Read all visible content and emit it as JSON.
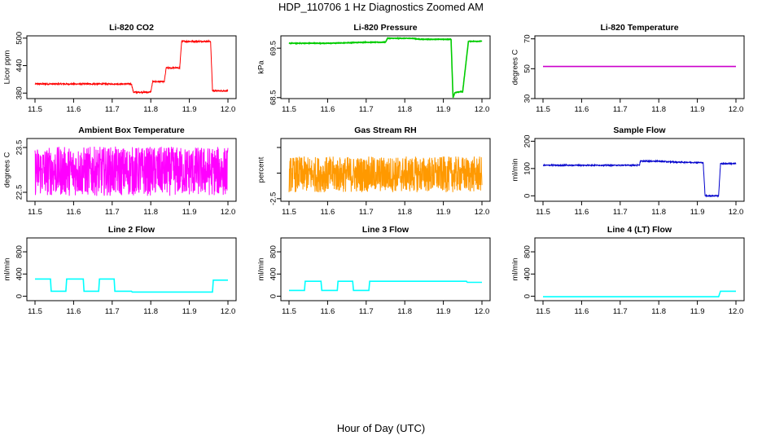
{
  "title": "HDP_110706  1 Hz Diagnostics Zoomed AM",
  "xlabel": "Hour of Day (UTC)",
  "chart_data": [
    {
      "type": "line",
      "title": "Li-820 CO2",
      "ylabel": "Licor ppm",
      "color": "#ff0000",
      "xlim": [
        11.5,
        12.0
      ],
      "ylim": [
        368,
        505
      ],
      "xticks": [
        "11.5",
        "11.6",
        "11.7",
        "11.8",
        "11.9",
        "12.0"
      ],
      "yticks": [
        {
          "v": 380,
          "l": "380"
        },
        {
          "v": 440,
          "l": "440"
        },
        {
          "v": 500,
          "l": "500"
        }
      ],
      "step": true,
      "noise": 1.5,
      "x": [
        11.5,
        11.75,
        11.755,
        11.8,
        11.805,
        11.835,
        11.84,
        11.875,
        11.88,
        11.955,
        11.96,
        12.0
      ],
      "y": [
        400,
        400,
        382,
        382,
        405,
        405,
        435,
        435,
        493,
        493,
        385,
        385
      ]
    },
    {
      "type": "line",
      "title": "Li-820 Pressure",
      "ylabel": "kPa",
      "color": "#00cc00",
      "xlim": [
        11.5,
        12.0
      ],
      "ylim": [
        68.48,
        69.75
      ],
      "xticks": [
        "11.5",
        "11.6",
        "11.7",
        "11.8",
        "11.9",
        "12.0"
      ],
      "yticks": [
        {
          "v": 68.5,
          "l": "68.5"
        },
        {
          "v": 69.5,
          "l": "69.5"
        }
      ],
      "step": true,
      "noise": 0.005,
      "x": [
        11.5,
        11.6,
        11.65,
        11.7,
        11.75,
        11.755,
        11.82,
        11.84,
        11.9,
        11.92,
        11.925,
        11.93,
        11.945,
        11.95,
        11.96,
        11.965,
        12.0
      ],
      "y": [
        69.6,
        69.6,
        69.61,
        69.62,
        69.62,
        69.7,
        69.7,
        69.68,
        69.68,
        69.68,
        68.5,
        68.6,
        68.62,
        68.62,
        69.3,
        69.64,
        69.64
      ]
    },
    {
      "type": "line",
      "title": "Li-820 Temperature",
      "ylabel": "degrees C",
      "color": "#cc00cc",
      "xlim": [
        11.5,
        12.0
      ],
      "ylim": [
        30,
        72
      ],
      "xticks": [
        "11.5",
        "11.6",
        "11.7",
        "11.8",
        "11.9",
        "12.0"
      ],
      "yticks": [
        {
          "v": 30,
          "l": "30"
        },
        {
          "v": 50,
          "l": "50"
        },
        {
          "v": 70,
          "l": "70"
        }
      ],
      "step": false,
      "noise": 0,
      "x": [
        11.5,
        12.0
      ],
      "y": [
        51.5,
        51.5
      ]
    },
    {
      "type": "line",
      "title": "Ambient Box Temperature",
      "ylabel": "degrees C",
      "color": "#ff00ff",
      "xlim": [
        11.5,
        12.0
      ],
      "ylim": [
        22.3,
        23.7
      ],
      "xticks": [
        "11.5",
        "11.6",
        "11.7",
        "11.8",
        "11.9",
        "12.0"
      ],
      "yticks": [
        {
          "v": 22.5,
          "l": "22.5"
        },
        {
          "v": 23.5,
          "l": "23.5"
        }
      ],
      "step": false,
      "noise": 0.55,
      "x": [
        11.5,
        12.0
      ],
      "y": [
        22.97,
        22.97
      ]
    },
    {
      "type": "line",
      "title": "Gas Stream RH",
      "ylabel": "percent",
      "color": "#ff9900",
      "xlim": [
        11.5,
        12.0
      ],
      "ylim": [
        -2.7,
        2.2
      ],
      "xticks": [
        "11.5",
        "11.6",
        "11.7",
        "11.8",
        "11.9",
        "12.0"
      ],
      "yticks": [
        {
          "v": -2.5,
          "l": "-2.5"
        },
        {
          "v": -0.5,
          "l": ""
        },
        {
          "v": 1.5,
          "l": ""
        }
      ],
      "step": false,
      "noise": 1.4,
      "x": [
        11.5,
        12.0
      ],
      "y": [
        -0.6,
        -0.6
      ]
    },
    {
      "type": "line",
      "title": "Sample Flow",
      "ylabel": "ml/min",
      "color": "#0000cc",
      "xlim": [
        11.5,
        12.0
      ],
      "ylim": [
        -20,
        210
      ],
      "xticks": [
        "11.5",
        "11.6",
        "11.7",
        "11.8",
        "11.9",
        "12.0"
      ],
      "yticks": [
        {
          "v": 0,
          "l": "0"
        },
        {
          "v": 100,
          "l": "100"
        },
        {
          "v": 200,
          "l": "200"
        }
      ],
      "step": true,
      "noise": 2,
      "x": [
        11.5,
        11.75,
        11.752,
        11.8,
        11.82,
        11.84,
        11.9,
        11.915,
        11.92,
        11.955,
        11.96,
        12.0
      ],
      "y": [
        112,
        112,
        127,
        127,
        125,
        124,
        122,
        122,
        0,
        0,
        118,
        118
      ]
    },
    {
      "type": "line",
      "title": "Line 2 Flow",
      "ylabel": "ml/min",
      "color": "#00ffff",
      "xlim": [
        11.5,
        12.0
      ],
      "ylim": [
        -80,
        1050
      ],
      "xticks": [
        "11.5",
        "11.6",
        "11.7",
        "11.8",
        "11.9",
        "12.0"
      ],
      "yticks": [
        {
          "v": 0,
          "l": "0"
        },
        {
          "v": 400,
          "l": "400"
        },
        {
          "v": 800,
          "l": "800"
        }
      ],
      "step": true,
      "noise": 0,
      "x": [
        11.5,
        11.54,
        11.542,
        11.58,
        11.582,
        11.625,
        11.627,
        11.665,
        11.667,
        11.705,
        11.707,
        11.75,
        11.752,
        11.96,
        11.962,
        12.0
      ],
      "y": [
        310,
        310,
        90,
        90,
        310,
        310,
        90,
        90,
        310,
        310,
        90,
        90,
        75,
        75,
        290,
        290
      ]
    },
    {
      "type": "line",
      "title": "Line 3 Flow",
      "ylabel": "ml/min",
      "color": "#00ffff",
      "xlim": [
        11.5,
        12.0
      ],
      "ylim": [
        -80,
        1050
      ],
      "xticks": [
        "11.5",
        "11.6",
        "11.7",
        "11.8",
        "11.9",
        "12.0"
      ],
      "yticks": [
        {
          "v": 0,
          "l": "0"
        },
        {
          "v": 400,
          "l": "400"
        },
        {
          "v": 800,
          "l": "800"
        }
      ],
      "step": true,
      "noise": 0,
      "x": [
        11.5,
        11.54,
        11.542,
        11.583,
        11.585,
        11.625,
        11.627,
        11.665,
        11.667,
        11.707,
        11.709,
        11.96,
        11.962,
        12.0
      ],
      "y": [
        105,
        105,
        270,
        270,
        105,
        105,
        270,
        270,
        105,
        105,
        270,
        270,
        250,
        250
      ]
    },
    {
      "type": "line",
      "title": "Line 4 (LT) Flow",
      "ylabel": "ml/min",
      "color": "#00ffff",
      "xlim": [
        11.5,
        12.0
      ],
      "ylim": [
        -80,
        1050
      ],
      "xticks": [
        "11.5",
        "11.6",
        "11.7",
        "11.8",
        "11.9",
        "12.0"
      ],
      "yticks": [
        {
          "v": 0,
          "l": "0"
        },
        {
          "v": 400,
          "l": "400"
        },
        {
          "v": 800,
          "l": "800"
        }
      ],
      "step": true,
      "noise": 0,
      "x": [
        11.5,
        11.955,
        11.96,
        12.0
      ],
      "y": [
        -10,
        -10,
        90,
        90
      ]
    }
  ]
}
